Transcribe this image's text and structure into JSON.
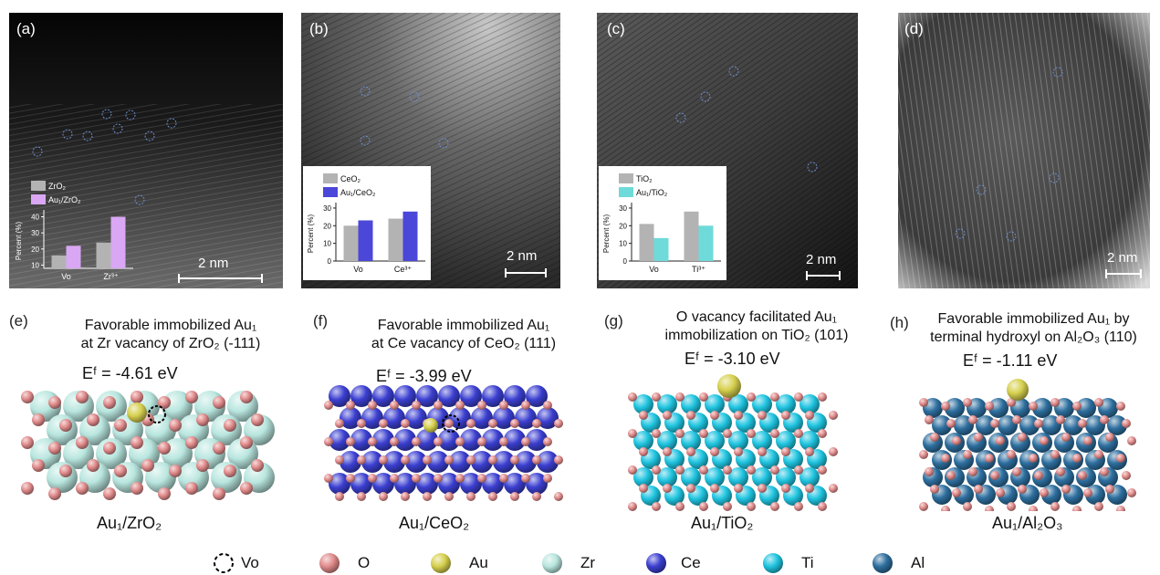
{
  "panels": {
    "a": {
      "label": "(a)",
      "scalebar": "2 nm"
    },
    "b": {
      "label": "(b)",
      "scalebar": "2 nm"
    },
    "c": {
      "label": "(c)",
      "scalebar": "2 nm"
    },
    "d": {
      "label": "(d)",
      "scalebar": "2 nm"
    }
  },
  "models": {
    "e": {
      "label": "(e)",
      "caption1": "Favorable immobilized Au₁",
      "caption2": "at Zr vacancy of ZrO₂ (-111)",
      "ef": "Eᶠ = -4.61 eV",
      "name": "Au₁/ZrO₂"
    },
    "f": {
      "label": "(f)",
      "caption1": "Favorable immobilized Au₁",
      "caption2": "at Ce vacancy of CeO₂ (111)",
      "ef": "Eᶠ = -3.99 eV",
      "name": "Au₁/CeO₂"
    },
    "g": {
      "label": "(g)",
      "caption1": "O vacancy facilitated Au₁",
      "caption2": "immobilization on TiO₂ (101)",
      "ef": "Eᶠ = -3.10 eV",
      "name": "Au₁/TiO₂"
    },
    "h": {
      "label": "(h)",
      "caption1": "Favorable immobilized Au₁ by",
      "caption2": "terminal hydroxyl on Al₂O₃ (110)",
      "ef": "Eᶠ = -1.11 eV",
      "name": "Au₁/Al₂O₃"
    }
  },
  "legend": [
    {
      "label": "Vo",
      "icon": "vacancy-dashed-circle",
      "color": "#000000"
    },
    {
      "label": "O",
      "icon": "sphere",
      "color": "#e08a8a"
    },
    {
      "label": "Au",
      "icon": "sphere",
      "color": "#d6d04e"
    },
    {
      "label": "Zr",
      "icon": "sphere",
      "color": "#b9e6df"
    },
    {
      "label": "Ce",
      "icon": "sphere",
      "color": "#3b3fd0"
    },
    {
      "label": "Ti",
      "icon": "sphere",
      "color": "#1fc4e0"
    },
    {
      "label": "Al",
      "icon": "sphere",
      "color": "#2d6e9e"
    }
  ],
  "chart_data": [
    {
      "type": "bar",
      "panel": "a",
      "ylabel": "Percent (%)",
      "categories": [
        "Vo",
        "Zr³⁺"
      ],
      "yticks": [
        10,
        20,
        30,
        40
      ],
      "ylim": [
        8,
        42
      ],
      "series": [
        {
          "name": "ZrO₂",
          "color": "#b3b3b3",
          "values": [
            16,
            24
          ]
        },
        {
          "name": "Au₁/ZrO₂",
          "color": "#d9a7f3",
          "values": [
            22,
            40
          ]
        }
      ]
    },
    {
      "type": "bar",
      "panel": "b",
      "ylabel": "Percent (%)",
      "categories": [
        "Vo",
        "Ce³⁺"
      ],
      "yticks": [
        0,
        10,
        20,
        30
      ],
      "ylim": [
        0,
        31
      ],
      "series": [
        {
          "name": "CeO₂",
          "color": "#b3b3b3",
          "values": [
            20,
            24
          ]
        },
        {
          "name": "Au₁/CeO₂",
          "color": "#4b47d8",
          "values": [
            23,
            28
          ]
        }
      ]
    },
    {
      "type": "bar",
      "panel": "c",
      "ylabel": "Percent (%)",
      "categories": [
        "Vo",
        "Ti³⁺"
      ],
      "yticks": [
        0,
        10,
        20,
        30
      ],
      "ylim": [
        0,
        31
      ],
      "series": [
        {
          "name": "TiO₂",
          "color": "#b3b3b3",
          "values": [
            21,
            28
          ]
        },
        {
          "name": "Au₁/TiO₂",
          "color": "#6fdada",
          "values": [
            13,
            20
          ]
        }
      ]
    }
  ]
}
